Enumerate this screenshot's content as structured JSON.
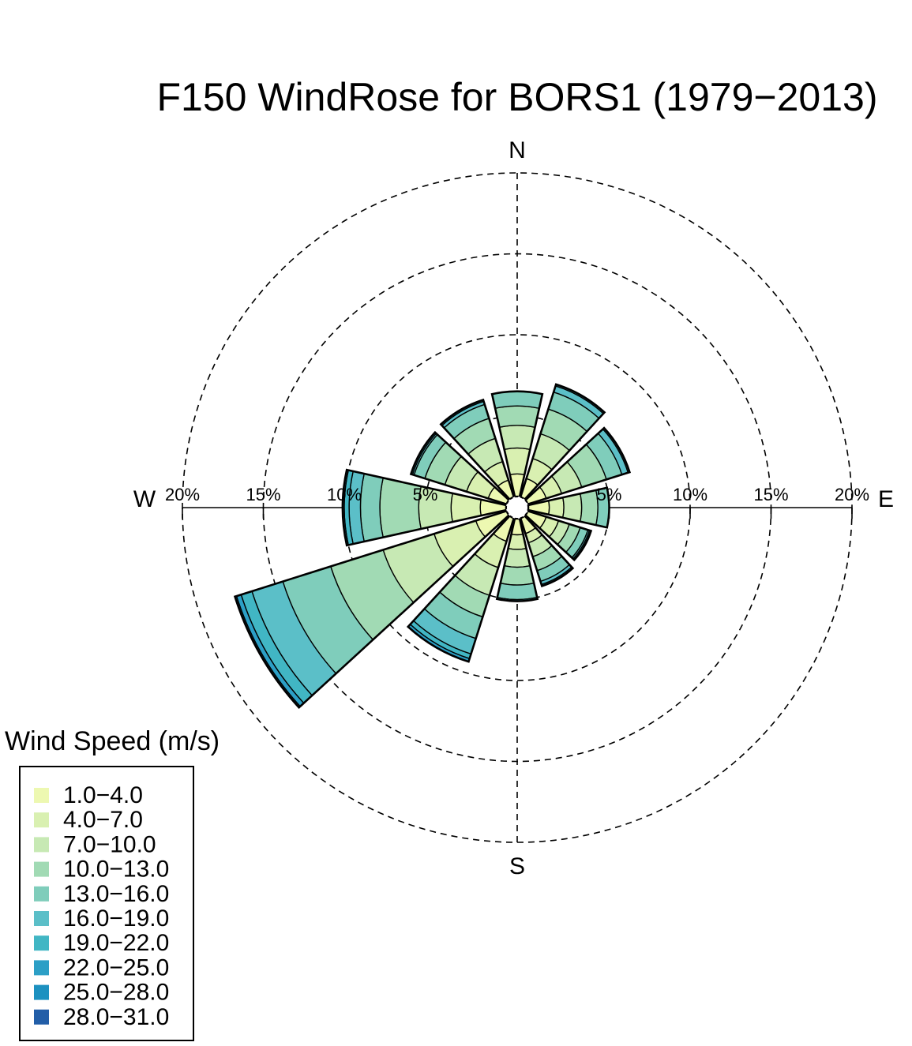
{
  "chart_data": {
    "type": "windrose",
    "title": "F150 WindRose for BORS1 (1979−2013)",
    "compass": [
      "N",
      "E",
      "S",
      "W"
    ],
    "rings": [
      5,
      10,
      15,
      20
    ],
    "ring_labels": [
      "5%",
      "10%",
      "15%",
      "20%"
    ],
    "legend_title": "Wind Speed (m/s)",
    "speed_bins": [
      "1.0−4.0",
      "4.0−7.0",
      "7.0−10.0",
      "10.0−13.0",
      "13.0−16.0",
      "16.0−19.0",
      "19.0−22.0",
      "22.0−25.0",
      "25.0−28.0",
      "28.0−31.0"
    ],
    "colors": [
      "#edf8b1",
      "#d9f0b1",
      "#c7e9b4",
      "#a1dab4",
      "#7fcdbb",
      "#5bbfc8",
      "#41b6c4",
      "#2c9fc6",
      "#1d91c0",
      "#225ea8"
    ],
    "directions_deg": [
      0,
      30,
      60,
      90,
      120,
      150,
      180,
      210,
      240,
      270,
      300,
      330
    ],
    "cumulative": [
      [
        1.4,
        3.0,
        4.4,
        5.6,
        6.5,
        6.5,
        6.5,
        6.5,
        6.5,
        6.5
      ],
      [
        1.2,
        2.5,
        4.1,
        5.7,
        6.8,
        7.2,
        7.3,
        7.3,
        7.3,
        7.3
      ],
      [
        1.2,
        2.2,
        3.5,
        5.1,
        6.1,
        6.5,
        6.6,
        6.6,
        6.6,
        6.6
      ],
      [
        1.3,
        2.2,
        3.3,
        4.3,
        5.0,
        5.0,
        5.0,
        5.0,
        5.0,
        5.0
      ],
      [
        1.2,
        2.0,
        2.7,
        3.4,
        3.9,
        4.0,
        4.1,
        4.1,
        4.1,
        4.1
      ],
      [
        1.0,
        1.6,
        2.5,
        3.4,
        4.1,
        4.3,
        4.4,
        4.4,
        4.4,
        4.4
      ],
      [
        1.0,
        1.9,
        3.0,
        4.1,
        5.0,
        5.0,
        5.1,
        5.1,
        5.1,
        5.1
      ],
      [
        1.5,
        3.2,
        5.0,
        6.4,
        7.8,
        8.8,
        9.1,
        9.3,
        9.3,
        9.3
      ],
      [
        2.0,
        4.7,
        8.0,
        11.4,
        14.5,
        16.5,
        17.2,
        17.5,
        17.6,
        17.6
      ],
      [
        1.6,
        3.4,
        5.4,
        7.8,
        9.0,
        9.7,
        10.0,
        10.1,
        10.1,
        10.1
      ],
      [
        1.2,
        2.6,
        4.0,
        5.3,
        6.0,
        6.1,
        6.2,
        6.2,
        6.2,
        6.2
      ],
      [
        1.1,
        2.3,
        3.8,
        5.1,
        6.0,
        6.2,
        6.3,
        6.3,
        6.3,
        6.3
      ]
    ]
  }
}
